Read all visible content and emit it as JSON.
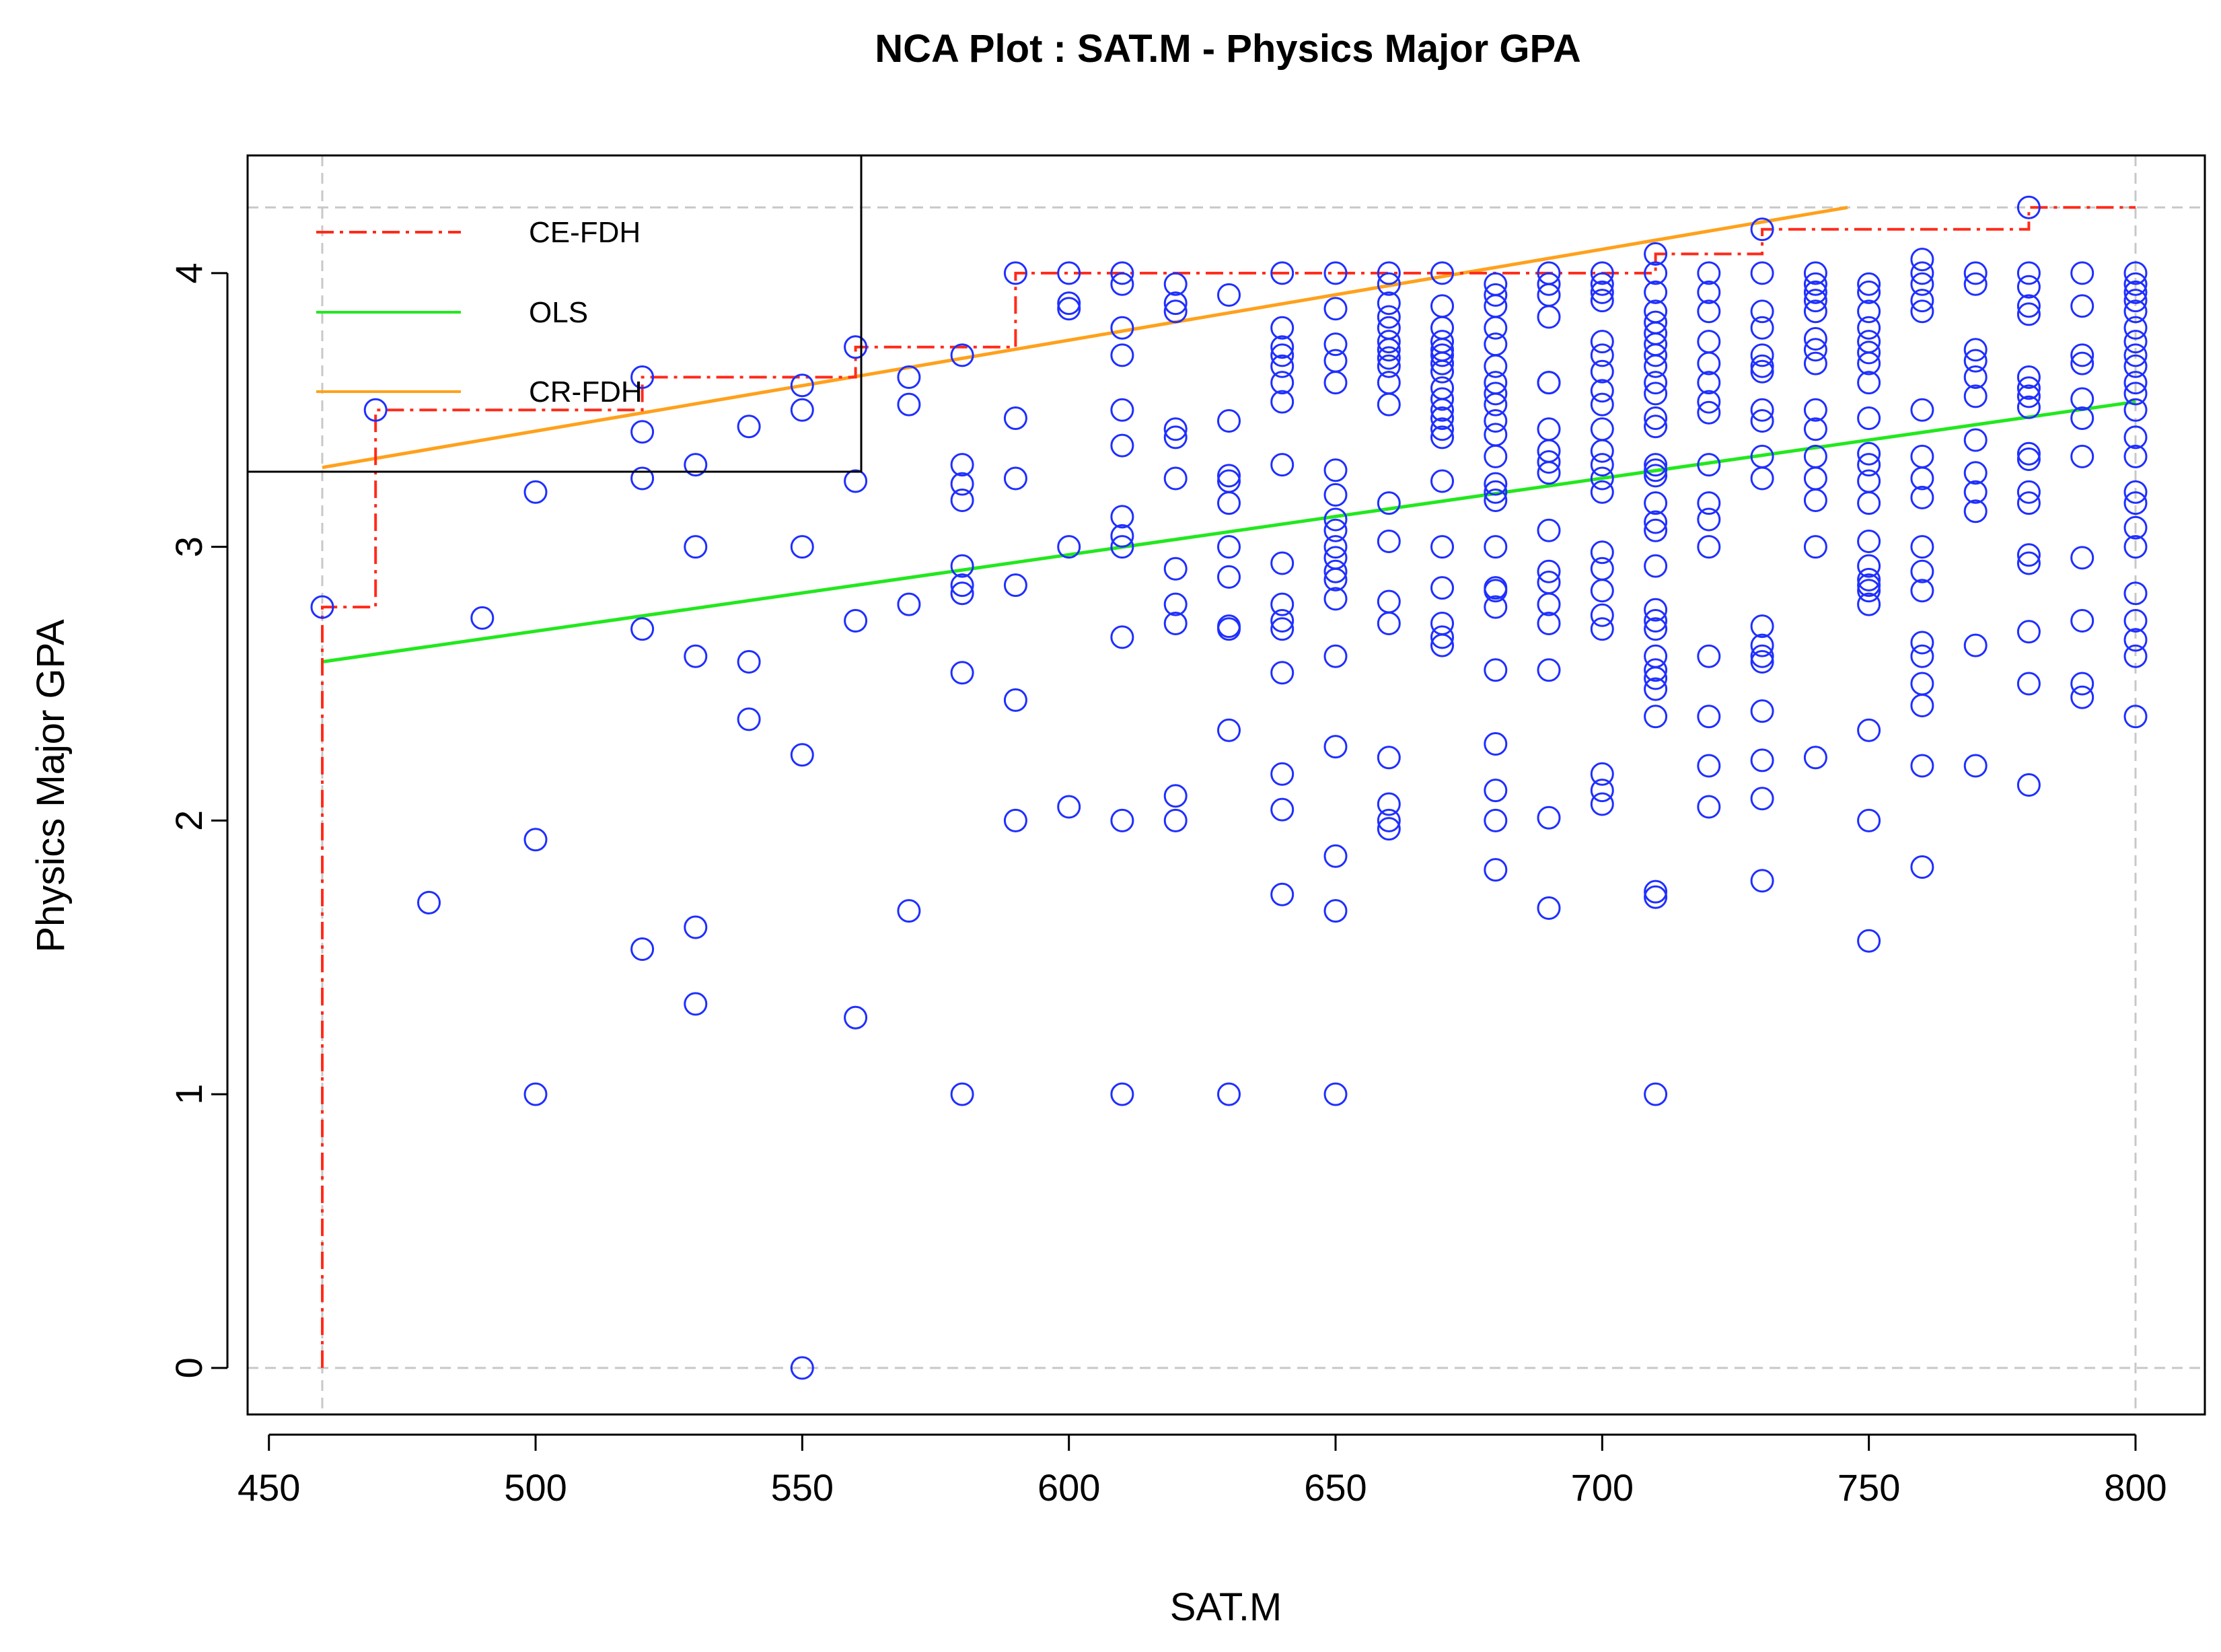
{
  "colors": {
    "points": "#1f2fff",
    "ce_fdh": "#ff2a1a",
    "ols": "#22e81e",
    "cr_fdh": "#ffa11c",
    "grid": "#c8c8c8",
    "axis": "#000000"
  },
  "chart_data": {
    "type": "scatter",
    "title": "NCA Plot : SAT.M - Physics Major GPA",
    "xlabel": "SAT.M",
    "ylabel": "Physics Major GPA",
    "xlim": [
      446,
      813
    ],
    "ylim": [
      -0.17,
      4.43
    ],
    "x_ticks": [
      450,
      500,
      550,
      600,
      650,
      700,
      750,
      800
    ],
    "x_tick_labels": [
      "450",
      "500",
      "550",
      "600",
      "650",
      "700",
      "750",
      "800"
    ],
    "y_ticks": [
      0,
      1,
      2,
      3,
      4
    ],
    "y_tick_labels": [
      "0",
      "1",
      "2",
      "3",
      "4"
    ],
    "reference_lines": {
      "x_min": 460,
      "x_max": 800,
      "y_min": 0,
      "y_max": 4.24
    },
    "legend": [
      {
        "label": "CE-FDH",
        "style": "dashdot",
        "color_key": "ce_fdh"
      },
      {
        "label": "OLS",
        "style": "solid",
        "color_key": "ols"
      },
      {
        "label": "CR-FDH",
        "style": "solid",
        "color_key": "cr_fdh"
      }
    ],
    "ce_fdh": [
      [
        460,
        0
      ],
      [
        460,
        2.78
      ],
      [
        470,
        2.78
      ],
      [
        470,
        3.5
      ],
      [
        520,
        3.5
      ],
      [
        520,
        3.62
      ],
      [
        560,
        3.62
      ],
      [
        560,
        3.73
      ],
      [
        590,
        3.73
      ],
      [
        590,
        4.0
      ],
      [
        710,
        4.0
      ],
      [
        710,
        4.07
      ],
      [
        730,
        4.07
      ],
      [
        730,
        4.16
      ],
      [
        780,
        4.16
      ],
      [
        780,
        4.24
      ],
      [
        800,
        4.24
      ]
    ],
    "ols": {
      "x": [
        460,
        800
      ],
      "y": [
        2.58,
        3.53
      ]
    },
    "cr_fdh": {
      "x": [
        460,
        746
      ],
      "y": [
        3.29,
        4.24
      ]
    },
    "points": [
      [
        460,
        2.78
      ],
      [
        470,
        3.5
      ],
      [
        480,
        1.7
      ],
      [
        490,
        2.74
      ],
      [
        500,
        3.2
      ],
      [
        500,
        1.93
      ],
      [
        500,
        1.0
      ],
      [
        520,
        3.62
      ],
      [
        520,
        3.42
      ],
      [
        520,
        3.25
      ],
      [
        520,
        2.7
      ],
      [
        520,
        1.53
      ],
      [
        530,
        3.3
      ],
      [
        530,
        3.0
      ],
      [
        530,
        2.6
      ],
      [
        530,
        1.61
      ],
      [
        530,
        1.33
      ],
      [
        540,
        3.44
      ],
      [
        540,
        2.58
      ],
      [
        540,
        2.37
      ],
      [
        550,
        3.59
      ],
      [
        550,
        3.5
      ],
      [
        550,
        3.0
      ],
      [
        550,
        2.24
      ],
      [
        550,
        0.0
      ],
      [
        560,
        3.73
      ],
      [
        560,
        3.24
      ],
      [
        560,
        2.73
      ],
      [
        560,
        1.28
      ],
      [
        570,
        3.62
      ],
      [
        570,
        3.52
      ],
      [
        570,
        2.79
      ],
      [
        570,
        1.67
      ],
      [
        580,
        3.7
      ],
      [
        580,
        3.3
      ],
      [
        580,
        3.23
      ],
      [
        580,
        3.17
      ],
      [
        580,
        2.93
      ],
      [
        580,
        2.86
      ],
      [
        580,
        2.83
      ],
      [
        580,
        2.54
      ],
      [
        580,
        1.0
      ],
      [
        590,
        4.0
      ],
      [
        590,
        3.47
      ],
      [
        590,
        3.25
      ],
      [
        590,
        2.86
      ],
      [
        590,
        2.44
      ],
      [
        590,
        2.0
      ],
      [
        600,
        4.0
      ],
      [
        600,
        3.89
      ],
      [
        600,
        3.87
      ],
      [
        600,
        3.0
      ],
      [
        600,
        2.05
      ],
      [
        610,
        4.0
      ],
      [
        610,
        3.96
      ],
      [
        610,
        3.8
      ],
      [
        610,
        3.7
      ],
      [
        610,
        3.5
      ],
      [
        610,
        3.37
      ],
      [
        610,
        3.11
      ],
      [
        610,
        3.04
      ],
      [
        610,
        3.0
      ],
      [
        610,
        2.67
      ],
      [
        610,
        2.0
      ],
      [
        610,
        1.0
      ],
      [
        620,
        3.96
      ],
      [
        620,
        3.89
      ],
      [
        620,
        3.86
      ],
      [
        620,
        3.43
      ],
      [
        620,
        3.4
      ],
      [
        620,
        3.25
      ],
      [
        620,
        2.92
      ],
      [
        620,
        2.79
      ],
      [
        620,
        2.72
      ],
      [
        620,
        2.09
      ],
      [
        620,
        2.0
      ],
      [
        630,
        3.92
      ],
      [
        630,
        3.46
      ],
      [
        630,
        3.26
      ],
      [
        630,
        3.24
      ],
      [
        630,
        3.16
      ],
      [
        630,
        3.0
      ],
      [
        630,
        2.89
      ],
      [
        630,
        2.71
      ],
      [
        630,
        2.7
      ],
      [
        630,
        2.33
      ],
      [
        630,
        1.0
      ],
      [
        640,
        4.0
      ],
      [
        640,
        3.8
      ],
      [
        640,
        3.73
      ],
      [
        640,
        3.7
      ],
      [
        640,
        3.66
      ],
      [
        640,
        3.6
      ],
      [
        640,
        3.53
      ],
      [
        640,
        3.3
      ],
      [
        640,
        2.94
      ],
      [
        640,
        2.79
      ],
      [
        640,
        2.73
      ],
      [
        640,
        2.7
      ],
      [
        640,
        2.54
      ],
      [
        640,
        2.17
      ],
      [
        640,
        2.04
      ],
      [
        640,
        1.73
      ],
      [
        650,
        4.0
      ],
      [
        650,
        3.87
      ],
      [
        650,
        3.74
      ],
      [
        650,
        3.68
      ],
      [
        650,
        3.6
      ],
      [
        650,
        3.28
      ],
      [
        650,
        3.19
      ],
      [
        650,
        3.1
      ],
      [
        650,
        3.06
      ],
      [
        650,
        3.0
      ],
      [
        650,
        2.96
      ],
      [
        650,
        2.91
      ],
      [
        650,
        2.88
      ],
      [
        650,
        2.81
      ],
      [
        650,
        2.6
      ],
      [
        650,
        2.27
      ],
      [
        650,
        1.87
      ],
      [
        650,
        1.67
      ],
      [
        650,
        1.0
      ],
      [
        660,
        4.0
      ],
      [
        660,
        3.96
      ],
      [
        660,
        3.89
      ],
      [
        660,
        3.84
      ],
      [
        660,
        3.8
      ],
      [
        660,
        3.75
      ],
      [
        660,
        3.72
      ],
      [
        660,
        3.69
      ],
      [
        660,
        3.66
      ],
      [
        660,
        3.6
      ],
      [
        660,
        3.52
      ],
      [
        660,
        3.16
      ],
      [
        660,
        3.02
      ],
      [
        660,
        2.8
      ],
      [
        660,
        2.72
      ],
      [
        660,
        2.23
      ],
      [
        660,
        2.06
      ],
      [
        660,
        2.0
      ],
      [
        660,
        1.97
      ],
      [
        670,
        4.0
      ],
      [
        670,
        3.88
      ],
      [
        670,
        3.8
      ],
      [
        670,
        3.75
      ],
      [
        670,
        3.72
      ],
      [
        670,
        3.7
      ],
      [
        670,
        3.67
      ],
      [
        670,
        3.64
      ],
      [
        670,
        3.58
      ],
      [
        670,
        3.54
      ],
      [
        670,
        3.5
      ],
      [
        670,
        3.47
      ],
      [
        670,
        3.43
      ],
      [
        670,
        3.4
      ],
      [
        670,
        3.24
      ],
      [
        670,
        3.0
      ],
      [
        670,
        2.85
      ],
      [
        670,
        2.72
      ],
      [
        670,
        2.67
      ],
      [
        670,
        2.64
      ],
      [
        680,
        3.96
      ],
      [
        680,
        3.92
      ],
      [
        680,
        3.88
      ],
      [
        680,
        3.8
      ],
      [
        680,
        3.74
      ],
      [
        680,
        3.66
      ],
      [
        680,
        3.6
      ],
      [
        680,
        3.56
      ],
      [
        680,
        3.52
      ],
      [
        680,
        3.46
      ],
      [
        680,
        3.41
      ],
      [
        680,
        3.33
      ],
      [
        680,
        3.23
      ],
      [
        680,
        3.2
      ],
      [
        680,
        3.17
      ],
      [
        680,
        3.0
      ],
      [
        680,
        2.85
      ],
      [
        680,
        2.84
      ],
      [
        680,
        2.78
      ],
      [
        680,
        2.55
      ],
      [
        680,
        2.28
      ],
      [
        680,
        2.11
      ],
      [
        680,
        2.0
      ],
      [
        680,
        1.82
      ],
      [
        690,
        4.0
      ],
      [
        690,
        3.96
      ],
      [
        690,
        3.92
      ],
      [
        690,
        3.84
      ],
      [
        690,
        3.6
      ],
      [
        690,
        3.6
      ],
      [
        690,
        3.43
      ],
      [
        690,
        3.35
      ],
      [
        690,
        3.31
      ],
      [
        690,
        3.27
      ],
      [
        690,
        3.06
      ],
      [
        690,
        2.91
      ],
      [
        690,
        2.87
      ],
      [
        690,
        2.79
      ],
      [
        690,
        2.72
      ],
      [
        690,
        2.55
      ],
      [
        690,
        2.01
      ],
      [
        690,
        1.68
      ],
      [
        700,
        4.0
      ],
      [
        700,
        3.96
      ],
      [
        700,
        3.93
      ],
      [
        700,
        3.9
      ],
      [
        700,
        3.75
      ],
      [
        700,
        3.7
      ],
      [
        700,
        3.64
      ],
      [
        700,
        3.57
      ],
      [
        700,
        3.52
      ],
      [
        700,
        3.43
      ],
      [
        700,
        3.35
      ],
      [
        700,
        3.3
      ],
      [
        700,
        3.25
      ],
      [
        700,
        3.2
      ],
      [
        700,
        2.98
      ],
      [
        700,
        2.92
      ],
      [
        700,
        2.84
      ],
      [
        700,
        2.75
      ],
      [
        700,
        2.7
      ],
      [
        700,
        2.17
      ],
      [
        700,
        2.11
      ],
      [
        700,
        2.06
      ],
      [
        710,
        4.07
      ],
      [
        710,
        4.0
      ],
      [
        710,
        3.93
      ],
      [
        710,
        3.86
      ],
      [
        710,
        3.82
      ],
      [
        710,
        3.78
      ],
      [
        710,
        3.74
      ],
      [
        710,
        3.7
      ],
      [
        710,
        3.66
      ],
      [
        710,
        3.6
      ],
      [
        710,
        3.56
      ],
      [
        710,
        3.47
      ],
      [
        710,
        3.44
      ],
      [
        710,
        3.3
      ],
      [
        710,
        3.28
      ],
      [
        710,
        3.26
      ],
      [
        710,
        3.16
      ],
      [
        710,
        3.09
      ],
      [
        710,
        3.06
      ],
      [
        710,
        2.93
      ],
      [
        710,
        2.77
      ],
      [
        710,
        2.73
      ],
      [
        710,
        2.7
      ],
      [
        710,
        2.6
      ],
      [
        710,
        2.55
      ],
      [
        710,
        2.52
      ],
      [
        710,
        2.48
      ],
      [
        710,
        2.38
      ],
      [
        710,
        1.74
      ],
      [
        710,
        1.72
      ],
      [
        710,
        1.0
      ],
      [
        720,
        4.0
      ],
      [
        720,
        3.93
      ],
      [
        720,
        3.86
      ],
      [
        720,
        3.75
      ],
      [
        720,
        3.67
      ],
      [
        720,
        3.6
      ],
      [
        720,
        3.53
      ],
      [
        720,
        3.49
      ],
      [
        720,
        3.3
      ],
      [
        720,
        3.16
      ],
      [
        720,
        3.1
      ],
      [
        720,
        3.0
      ],
      [
        720,
        2.6
      ],
      [
        720,
        2.38
      ],
      [
        720,
        2.2
      ],
      [
        720,
        2.05
      ],
      [
        730,
        4.16
      ],
      [
        730,
        4.0
      ],
      [
        730,
        3.86
      ],
      [
        730,
        3.8
      ],
      [
        730,
        3.7
      ],
      [
        730,
        3.66
      ],
      [
        730,
        3.64
      ],
      [
        730,
        3.5
      ],
      [
        730,
        3.46
      ],
      [
        730,
        3.33
      ],
      [
        730,
        3.25
      ],
      [
        730,
        2.71
      ],
      [
        730,
        2.64
      ],
      [
        730,
        2.6
      ],
      [
        730,
        2.58
      ],
      [
        730,
        2.4
      ],
      [
        730,
        2.22
      ],
      [
        730,
        2.08
      ],
      [
        730,
        1.78
      ],
      [
        740,
        4.0
      ],
      [
        740,
        3.96
      ],
      [
        740,
        3.93
      ],
      [
        740,
        3.9
      ],
      [
        740,
        3.86
      ],
      [
        740,
        3.76
      ],
      [
        740,
        3.72
      ],
      [
        740,
        3.67
      ],
      [
        740,
        3.5
      ],
      [
        740,
        3.43
      ],
      [
        740,
        3.33
      ],
      [
        740,
        3.25
      ],
      [
        740,
        3.17
      ],
      [
        740,
        3.0
      ],
      [
        740,
        2.23
      ],
      [
        750,
        3.96
      ],
      [
        750,
        3.93
      ],
      [
        750,
        3.86
      ],
      [
        750,
        3.8
      ],
      [
        750,
        3.75
      ],
      [
        750,
        3.71
      ],
      [
        750,
        3.67
      ],
      [
        750,
        3.6
      ],
      [
        750,
        3.47
      ],
      [
        750,
        3.34
      ],
      [
        750,
        3.3
      ],
      [
        750,
        3.24
      ],
      [
        750,
        3.16
      ],
      [
        750,
        3.02
      ],
      [
        750,
        2.93
      ],
      [
        750,
        2.88
      ],
      [
        750,
        2.86
      ],
      [
        750,
        2.84
      ],
      [
        750,
        2.79
      ],
      [
        750,
        2.33
      ],
      [
        750,
        2.0
      ],
      [
        750,
        1.56
      ],
      [
        760,
        4.05
      ],
      [
        760,
        4.0
      ],
      [
        760,
        3.96
      ],
      [
        760,
        3.9
      ],
      [
        760,
        3.86
      ],
      [
        760,
        3.5
      ],
      [
        760,
        3.33
      ],
      [
        760,
        3.25
      ],
      [
        760,
        3.18
      ],
      [
        760,
        3.0
      ],
      [
        760,
        2.91
      ],
      [
        760,
        2.84
      ],
      [
        760,
        2.65
      ],
      [
        760,
        2.6
      ],
      [
        760,
        2.5
      ],
      [
        760,
        2.42
      ],
      [
        760,
        2.2
      ],
      [
        760,
        1.83
      ],
      [
        770,
        4.0
      ],
      [
        770,
        3.96
      ],
      [
        770,
        3.72
      ],
      [
        770,
        3.68
      ],
      [
        770,
        3.62
      ],
      [
        770,
        3.55
      ],
      [
        770,
        3.39
      ],
      [
        770,
        3.27
      ],
      [
        770,
        3.2
      ],
      [
        770,
        3.13
      ],
      [
        770,
        2.64
      ],
      [
        770,
        2.2
      ],
      [
        780,
        4.24
      ],
      [
        780,
        4.0
      ],
      [
        780,
        3.95
      ],
      [
        780,
        3.88
      ],
      [
        780,
        3.85
      ],
      [
        780,
        3.62
      ],
      [
        780,
        3.58
      ],
      [
        780,
        3.55
      ],
      [
        780,
        3.51
      ],
      [
        780,
        3.34
      ],
      [
        780,
        3.32
      ],
      [
        780,
        3.2
      ],
      [
        780,
        3.16
      ],
      [
        780,
        2.97
      ],
      [
        780,
        2.94
      ],
      [
        780,
        2.69
      ],
      [
        780,
        2.5
      ],
      [
        780,
        2.13
      ],
      [
        790,
        4.0
      ],
      [
        790,
        3.88
      ],
      [
        790,
        3.7
      ],
      [
        790,
        3.67
      ],
      [
        790,
        3.54
      ],
      [
        790,
        3.47
      ],
      [
        790,
        3.33
      ],
      [
        790,
        2.96
      ],
      [
        790,
        2.73
      ],
      [
        790,
        2.5
      ],
      [
        790,
        2.45
      ],
      [
        800,
        4.0
      ],
      [
        800,
        3.96
      ],
      [
        800,
        3.93
      ],
      [
        800,
        3.9
      ],
      [
        800,
        3.86
      ],
      [
        800,
        3.8
      ],
      [
        800,
        3.75
      ],
      [
        800,
        3.7
      ],
      [
        800,
        3.66
      ],
      [
        800,
        3.6
      ],
      [
        800,
        3.56
      ],
      [
        800,
        3.5
      ],
      [
        800,
        3.4
      ],
      [
        800,
        3.33
      ],
      [
        800,
        3.2
      ],
      [
        800,
        3.16
      ],
      [
        800,
        3.07
      ],
      [
        800,
        3.0
      ],
      [
        800,
        2.83
      ],
      [
        800,
        2.73
      ],
      [
        800,
        2.66
      ],
      [
        800,
        2.6
      ],
      [
        800,
        2.38
      ]
    ]
  }
}
